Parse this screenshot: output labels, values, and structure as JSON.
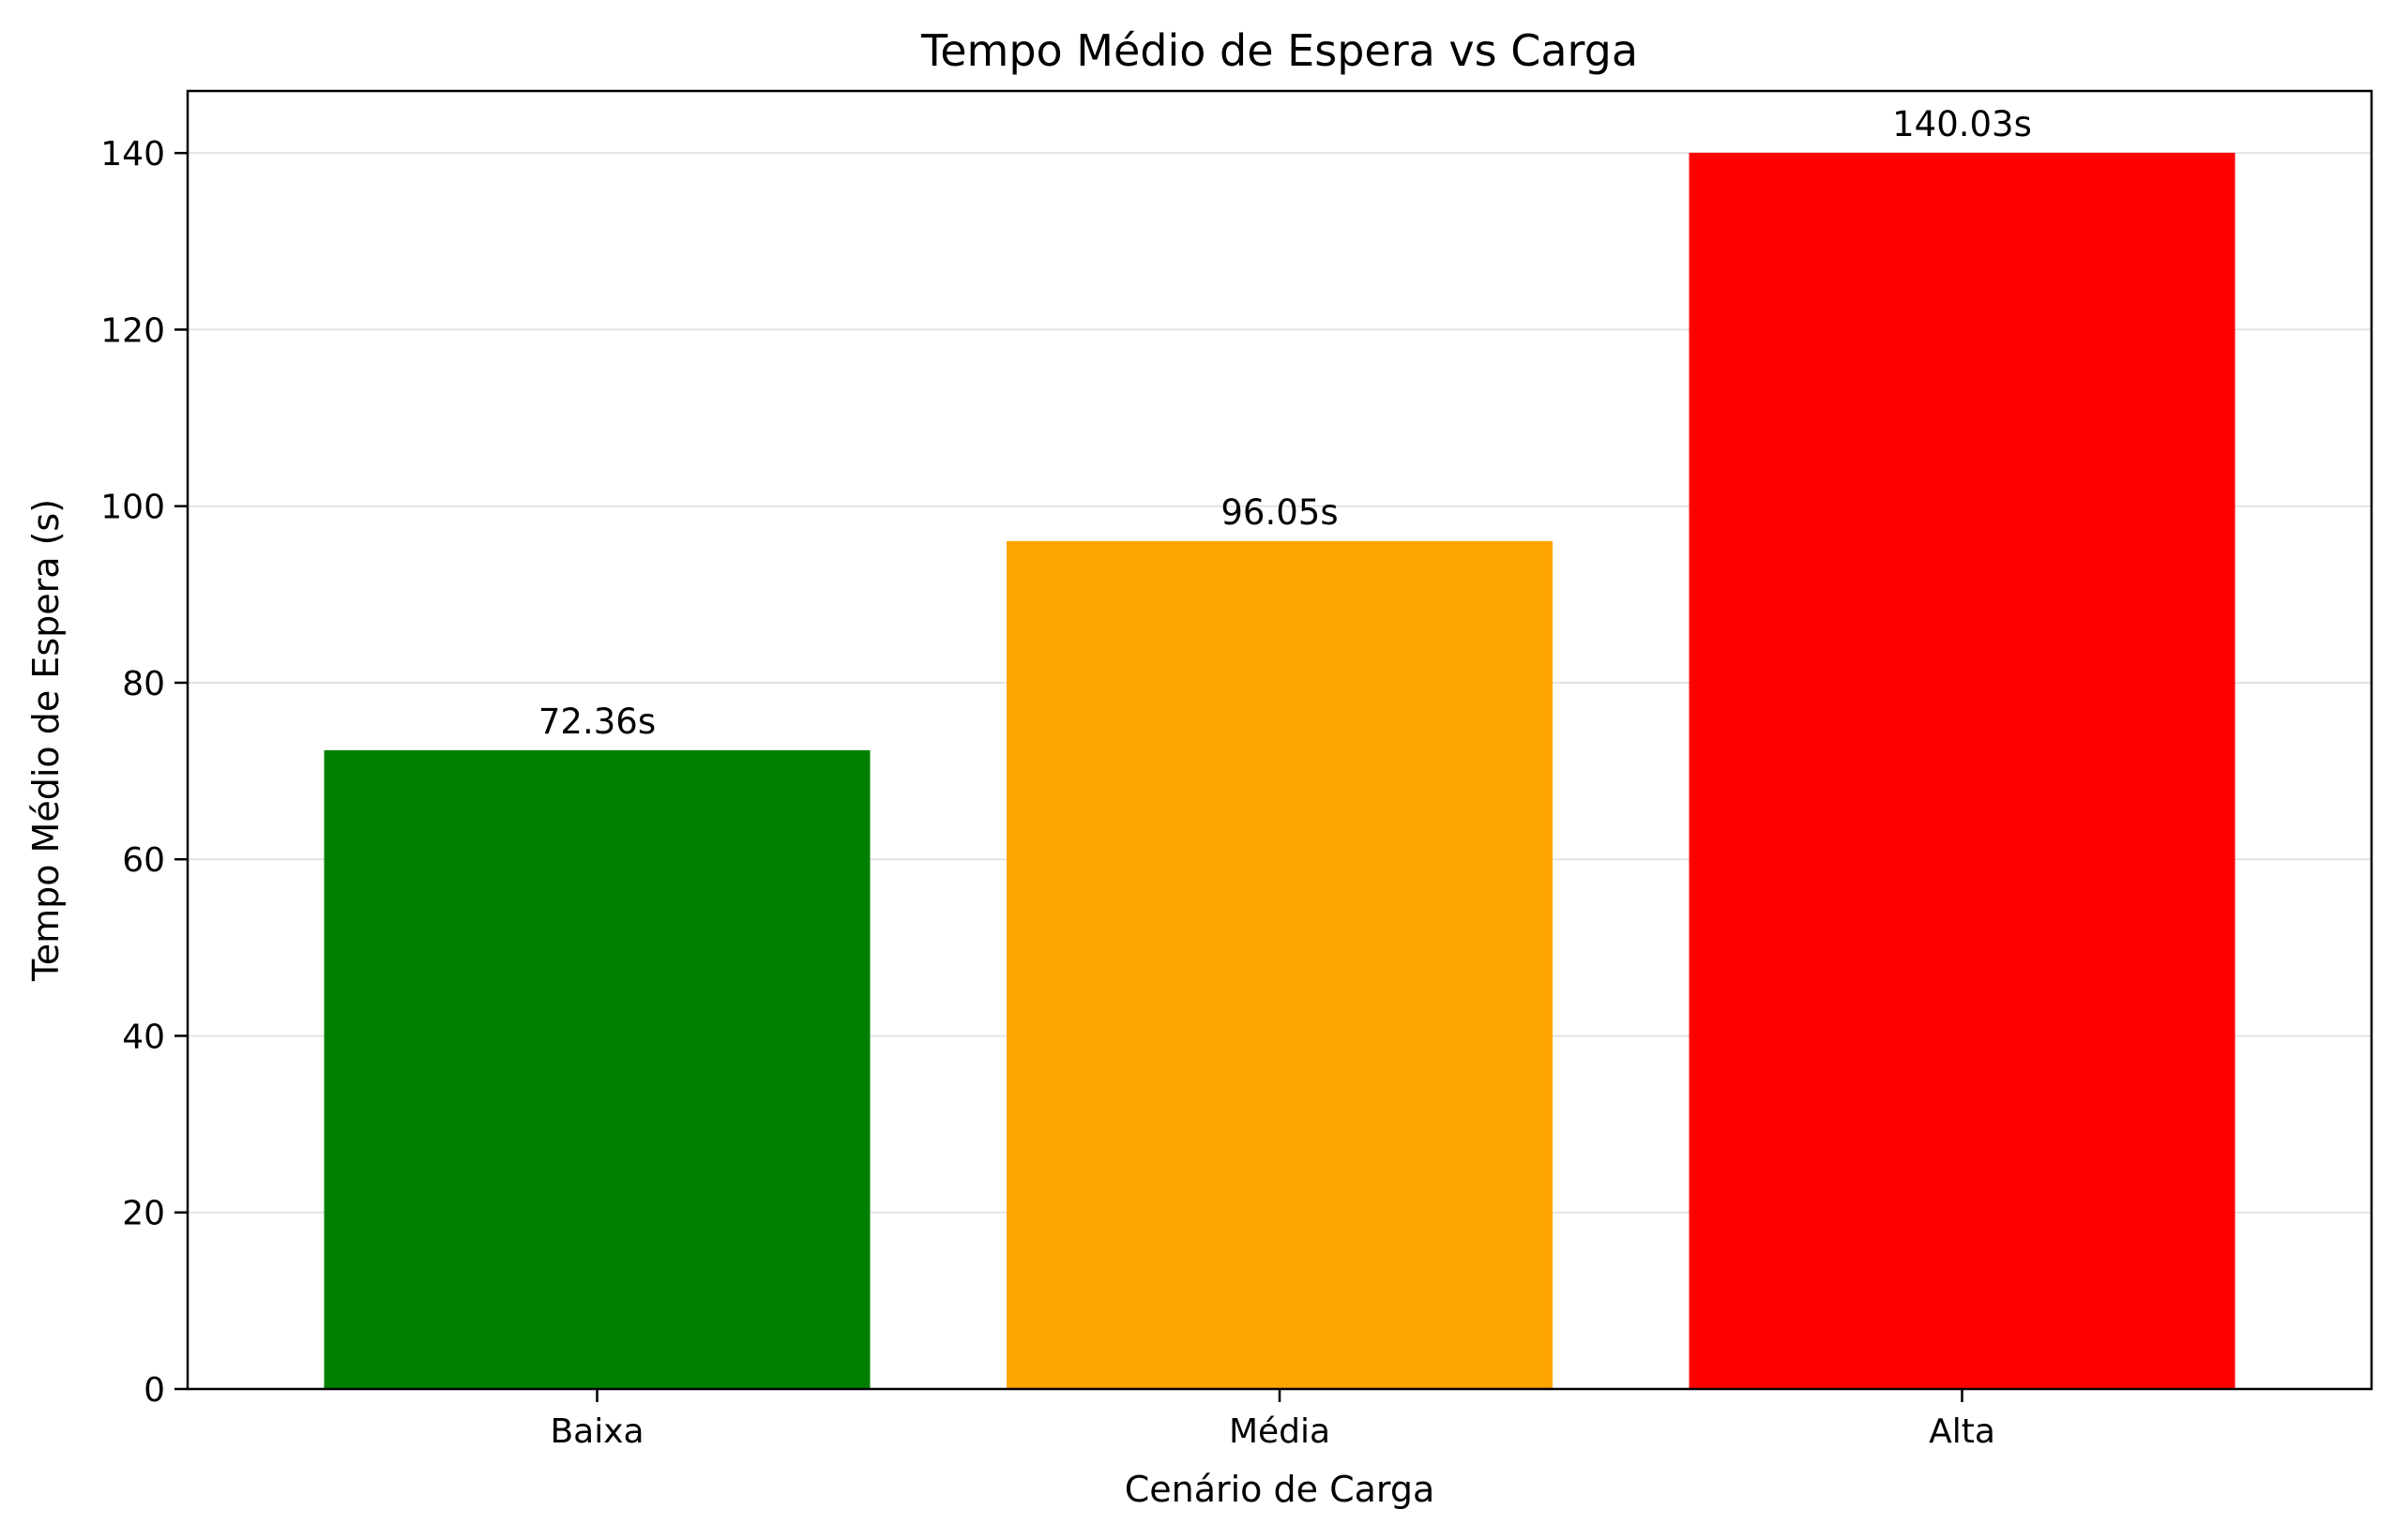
{
  "chart_data": {
    "type": "bar",
    "title": "Tempo Médio de Espera vs Carga",
    "xlabel": "Cenário de Carga",
    "ylabel": "Tempo Médio de Espera (s)",
    "categories": [
      "Baixa",
      "Média",
      "Alta"
    ],
    "values": [
      72.36,
      96.05,
      140.03
    ],
    "data_labels": [
      "72.36s",
      "96.05s",
      "140.03s"
    ],
    "colors": [
      "#008000",
      "#ffa500",
      "#ff0000"
    ],
    "ylim": [
      0,
      147.03
    ],
    "yticks": [
      0,
      20,
      40,
      60,
      80,
      100,
      120,
      140
    ],
    "grid": "y",
    "legend": "none"
  }
}
